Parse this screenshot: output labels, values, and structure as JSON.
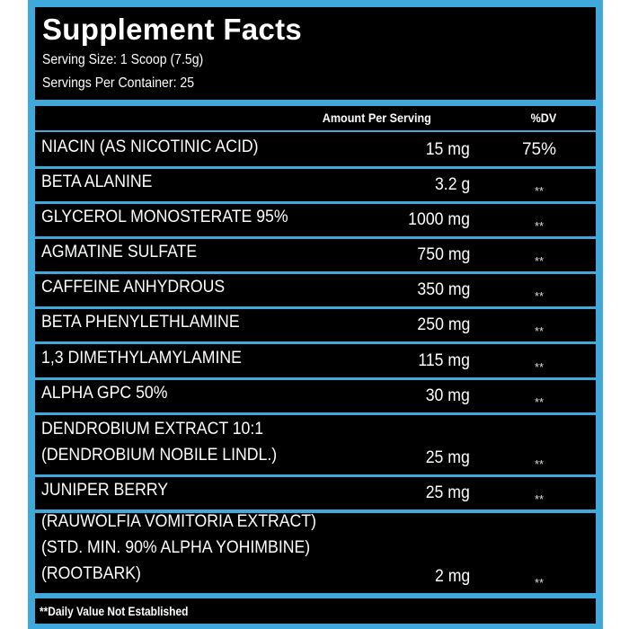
{
  "header": {
    "title": "Supplement Facts",
    "serving_size": "Serving Size: 1 Scoop (7.5g)",
    "servings_per_container": "Servings Per Container: 25"
  },
  "columns": {
    "amount": "Amount Per Serving",
    "dv": "%DV"
  },
  "rows": [
    {
      "name": "NIACIN (AS NICOTINIC ACID)",
      "amount": "15 mg",
      "dv": "75%"
    },
    {
      "name": "BETA ALANINE",
      "amount": "3.2 g",
      "dv": "**"
    },
    {
      "name": "GLYCEROL MONOSTERATE 95%",
      "amount": "1000 mg",
      "dv": "**"
    },
    {
      "name": "AGMATINE SULFATE",
      "amount": "750 mg",
      "dv": "**"
    },
    {
      "name": "CAFFEINE ANHYDROUS",
      "amount": "350 mg",
      "dv": "**"
    },
    {
      "name": "BETA PHENYLETHLAMINE",
      "amount": "250 mg",
      "dv": "**"
    },
    {
      "name": "1,3 DIMETHYLAMYLAMINE",
      "amount": "115 mg",
      "dv": "**"
    },
    {
      "name": "ALPHA GPC 50%",
      "amount": "30 mg",
      "dv": "**"
    },
    {
      "name": "DENDROBIUM EXTRACT 10:1\n(DENDROBIUM NOBILE LINDL.)",
      "amount": "25 mg",
      "dv": "**"
    },
    {
      "name": "JUNIPER BERRY",
      "amount": "25 mg",
      "dv": "**"
    },
    {
      "name": "(RAUWOLFIA VOMITORIA EXTRACT)\n(STD. MIN. 90% ALPHA YOHIMBINE)\n(ROOTBARK)",
      "amount": "2 mg",
      "dv": "**"
    }
  ],
  "footer": "**Daily Value Not Established",
  "colors": {
    "frame": "#3fa9dc",
    "panel": "#000000",
    "text": "#ffffff"
  }
}
